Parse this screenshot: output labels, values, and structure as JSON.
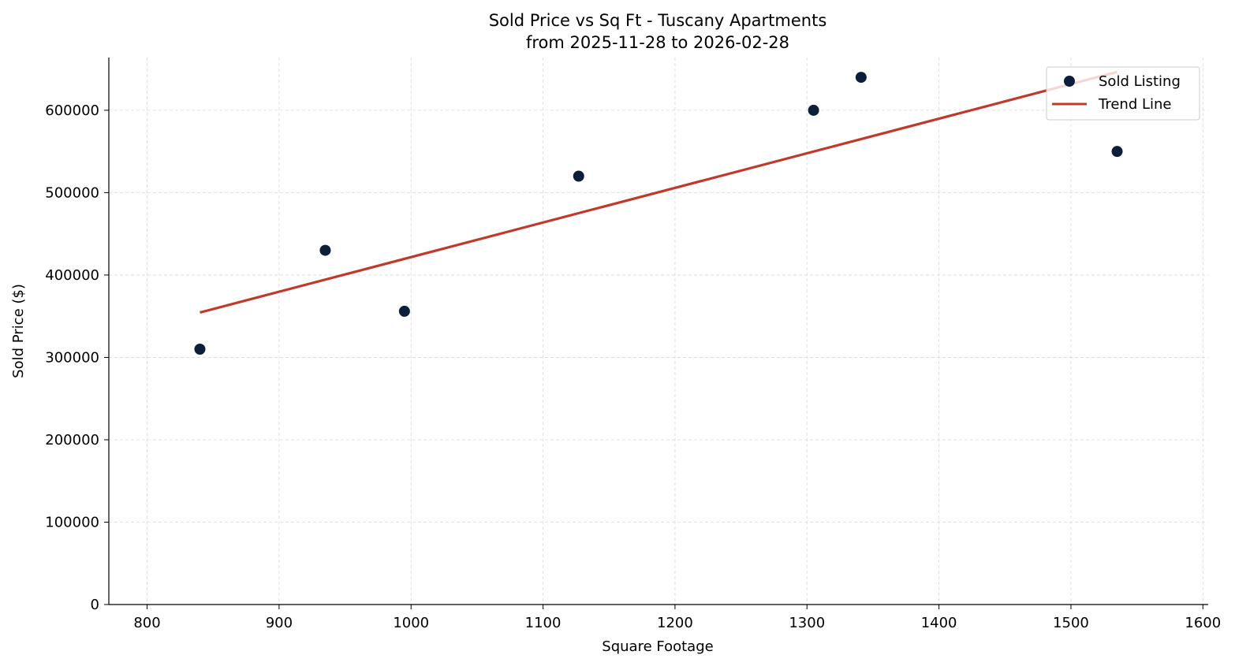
{
  "chart_data": {
    "type": "scatter",
    "title": "Sold Price vs Sq Ft - Tuscany Apartments",
    "subtitle": "from 2025-11-28 to 2026-02-28",
    "xlabel": "Square Footage",
    "ylabel": "Sold Price ($)",
    "xlim": [
      771,
      1604
    ],
    "ylim": [
      0,
      664000
    ],
    "xticks": [
      800,
      900,
      1000,
      1100,
      1200,
      1300,
      1400,
      1500,
      1600
    ],
    "yticks": [
      0,
      100000,
      200000,
      300000,
      400000,
      500000,
      600000
    ],
    "grid": true,
    "legend_position": "top-right",
    "series": [
      {
        "name": "Sold Listing",
        "kind": "scatter",
        "color": "#0b1f3a",
        "x": [
          840,
          935,
          995,
          1127,
          1305,
          1341,
          1535
        ],
        "y": [
          310000,
          430000,
          356000,
          520000,
          600000,
          640000,
          550000
        ]
      },
      {
        "name": "Trend Line",
        "kind": "line",
        "color": "#c0392b",
        "x": [
          840,
          1535
        ],
        "y": [
          354500,
          646500
        ]
      }
    ]
  }
}
